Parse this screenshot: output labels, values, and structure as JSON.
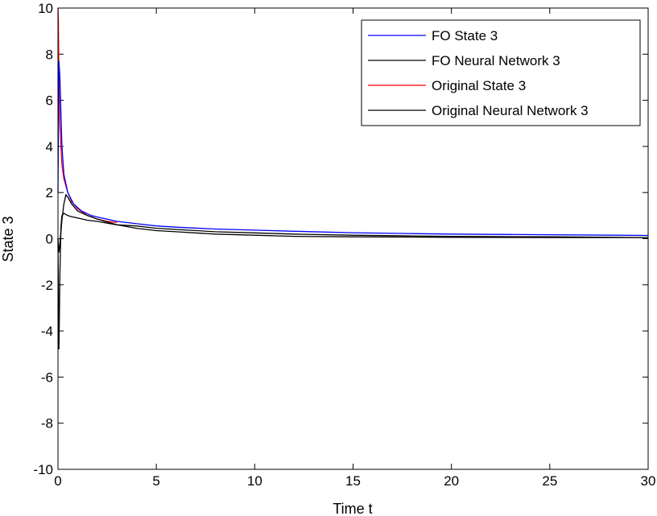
{
  "chart_data": {
    "type": "line",
    "title": "",
    "xlabel": "Time t",
    "ylabel": "State 3",
    "xlim": [
      0,
      30
    ],
    "ylim": [
      -10,
      10
    ],
    "xticks": [
      0,
      5,
      10,
      15,
      20,
      25,
      30
    ],
    "yticks": [
      -10,
      -8,
      -6,
      -4,
      -2,
      0,
      2,
      4,
      6,
      8,
      10
    ],
    "grid": false,
    "legend_position": "top-right",
    "series": [
      {
        "name": "FO State 3",
        "color": "#0000ff",
        "x": [
          0,
          0.05,
          0.1,
          0.2,
          0.3,
          0.5,
          0.8,
          1.2,
          1.7,
          2.2,
          3,
          4,
          5,
          6,
          8,
          10,
          12,
          15,
          18,
          20,
          25,
          30
        ],
        "y": [
          2.0,
          7.7,
          7.0,
          4.0,
          2.8,
          2.0,
          1.5,
          1.2,
          1.0,
          0.9,
          0.75,
          0.65,
          0.55,
          0.5,
          0.42,
          0.37,
          0.32,
          0.26,
          0.22,
          0.2,
          0.17,
          0.14
        ]
      },
      {
        "name": "FO Neural Network 3",
        "color": "#000000",
        "x": [
          0,
          0.05,
          0.1,
          0.15,
          0.2,
          0.3,
          0.4,
          0.5,
          0.7,
          1,
          1.5,
          2,
          3,
          4,
          5,
          6,
          8,
          10,
          12,
          15,
          18,
          20,
          25,
          30
        ],
        "y": [
          0,
          -4.8,
          -1.5,
          0.5,
          1.0,
          1.1,
          1.05,
          1.0,
          0.95,
          0.9,
          0.8,
          0.75,
          0.6,
          0.55,
          0.45,
          0.4,
          0.3,
          0.25,
          0.2,
          0.15,
          0.12,
          0.1,
          0.08,
          0.05
        ]
      },
      {
        "name": "Original State 3",
        "color": "#ff0000",
        "x": [
          0,
          0.02,
          0.05,
          0.1,
          0.15,
          0.2,
          0.3,
          0.5,
          0.7,
          1,
          1.5,
          2,
          2.5,
          3
        ],
        "y": [
          10,
          9.5,
          7.0,
          5.0,
          4.0,
          3.2,
          2.6,
          2.0,
          1.6,
          1.3,
          1.0,
          0.85,
          0.75,
          0.7
        ]
      },
      {
        "name": "Original Neural Network 3",
        "color": "#000000",
        "x": [
          0,
          0.05,
          0.1,
          0.2,
          0.3,
          0.4,
          0.5,
          0.7,
          1,
          1.5,
          2,
          3,
          4,
          5,
          6,
          8,
          10,
          12,
          15,
          18,
          20,
          25,
          30
        ],
        "y": [
          0,
          -0.6,
          -0.2,
          0.8,
          1.5,
          1.9,
          1.8,
          1.5,
          1.2,
          1.0,
          0.85,
          0.6,
          0.45,
          0.35,
          0.3,
          0.2,
          0.15,
          0.1,
          0.08,
          0.07,
          0.06,
          0.05,
          0.05
        ]
      }
    ]
  }
}
